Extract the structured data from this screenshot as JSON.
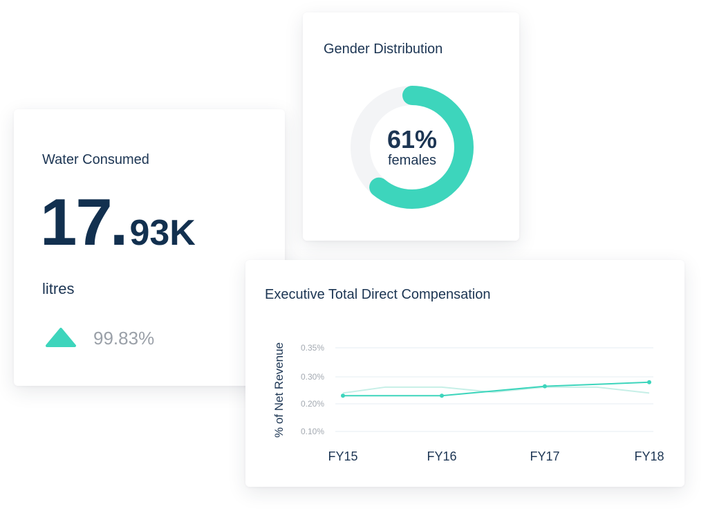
{
  "water": {
    "title": "Water Consumed",
    "value_int": "17",
    "value_sep": ".",
    "value_dec": "93K",
    "unit": "litres",
    "trend_icon": "triangle-up-icon",
    "trend_value": "99.83%",
    "trend_color": "#3dd5bc"
  },
  "gender": {
    "title": "Gender Distribution",
    "percent_label": "61%",
    "sub_label": "females",
    "fraction": 0.61,
    "color": "#3dd5bc",
    "track_color": "#f3f4f6"
  },
  "compensation": {
    "title": "Executive Total Direct Compensation",
    "chart_data": {
      "type": "line",
      "title": "Executive Total Direct Compensation",
      "ylabel": "% of Net Revenue",
      "xlabel": "",
      "categories": [
        "FY15",
        "FY16",
        "FY17",
        "FY18"
      ],
      "y_ticks": [
        "0.35%",
        "0.30%",
        "0.20%",
        "0.10%"
      ],
      "y_tick_values": [
        0.35,
        0.3,
        0.2,
        0.1
      ],
      "grid": true,
      "series": [
        {
          "name": "",
          "color": "#3dd5bc",
          "style": "primary",
          "x": [
            0,
            1,
            2,
            3
          ],
          "values": [
            0.23,
            0.23,
            0.265,
            0.28
          ]
        },
        {
          "name": "",
          "color": "#c6efe7",
          "style": "faded",
          "x": [
            0,
            0.43,
            1,
            1.5,
            2,
            2.5,
            3
          ],
          "values": [
            0.24,
            0.262,
            0.262,
            0.243,
            0.262,
            0.262,
            0.24
          ]
        }
      ]
    }
  }
}
